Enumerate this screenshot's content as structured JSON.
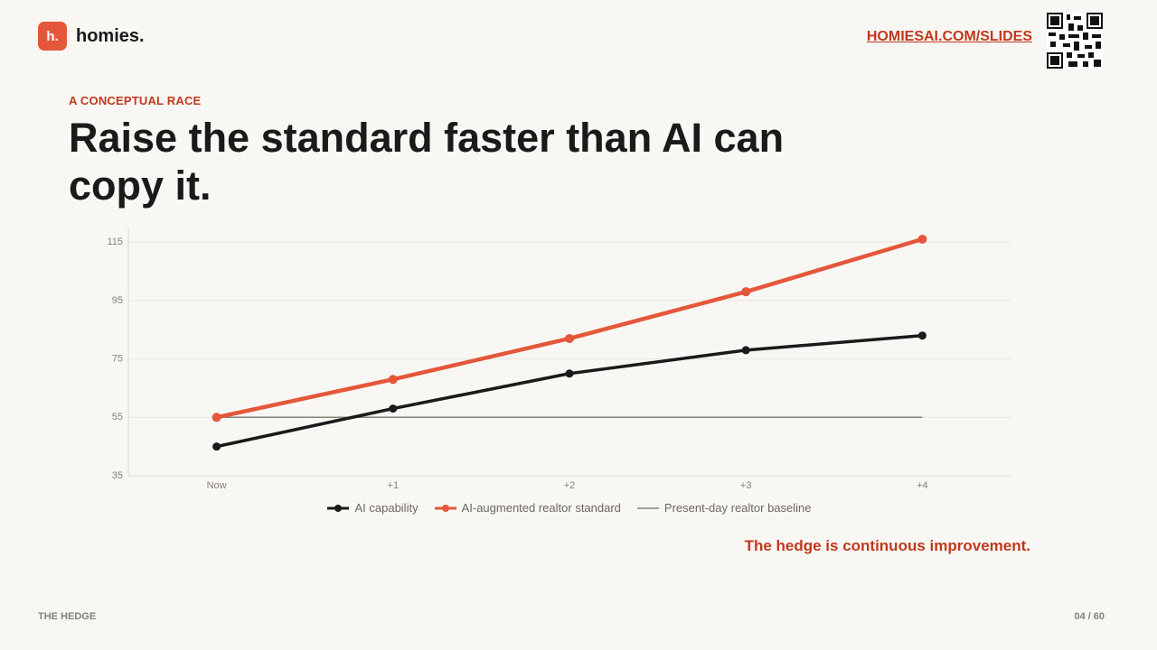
{
  "header": {
    "logo": "h.",
    "brand": "homies.",
    "link": "HOMIESAI.COM/SLIDES"
  },
  "kicker": "A CONCEPTUAL RACE",
  "title": "Raise the standard faster than AI can copy it.",
  "chart_data": {
    "type": "line",
    "categories": [
      "Now",
      "+1",
      "+2",
      "+3",
      "+4"
    ],
    "series": [
      {
        "name": "AI capability",
        "color": "#1a1a1a",
        "markers": true,
        "values": [
          45,
          58,
          70,
          78,
          83
        ]
      },
      {
        "name": "AI-augmented realtor standard",
        "color": "#e4573a",
        "markers": true,
        "values": [
          55,
          68,
          82,
          98,
          116
        ]
      },
      {
        "name": "Present-day realtor baseline",
        "color": "#85817a",
        "markers": false,
        "values": [
          55,
          55,
          55,
          55,
          55
        ]
      }
    ],
    "ylim": [
      35,
      120
    ],
    "yticks": [
      35,
      55,
      75,
      95,
      115
    ],
    "grid": true,
    "legend": "bottom"
  },
  "caption": "The hedge is continuous improvement.",
  "footer": {
    "section": "THE HEDGE",
    "page": "04 / 60"
  }
}
